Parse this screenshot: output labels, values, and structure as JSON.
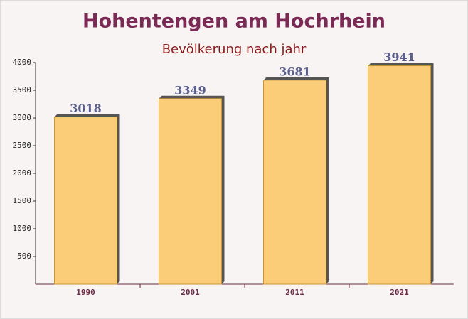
{
  "chart_data": {
    "type": "bar",
    "title": "Hohentengen am Hochrhein",
    "subtitle": "Bevölkerung nach jahr",
    "categories": [
      "1990",
      "2001",
      "2011",
      "2021"
    ],
    "values": [
      3018,
      3349,
      3681,
      3941
    ],
    "color": "#fcc96b",
    "ylim": [
      0,
      4000
    ],
    "yticks": [
      500,
      1000,
      1500,
      2000,
      2500,
      3000,
      3500,
      4000
    ]
  }
}
